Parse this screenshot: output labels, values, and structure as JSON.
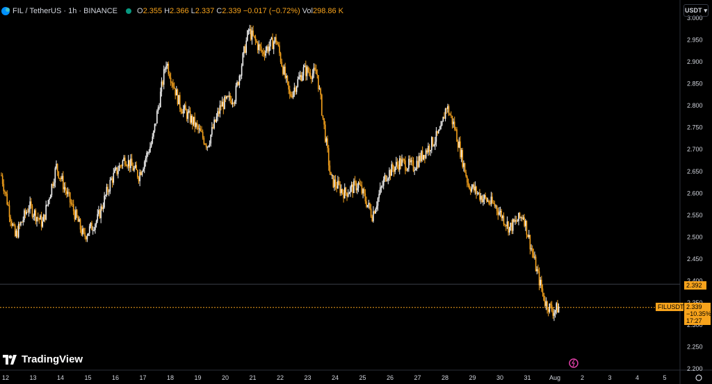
{
  "header": {
    "symbol_title": "FIL / TetherUS · 1h · BINANCE",
    "o_label": "O",
    "o_value": "2.355",
    "h_label": "H",
    "h_value": "2.366",
    "l_label": "L",
    "l_value": "2.337",
    "c_label": "C",
    "c_value": "2.339",
    "change": "−0.017 (−0.72%)",
    "vol_label": "Vol",
    "vol_value": "298.86 K"
  },
  "currency_button": "USDT",
  "brand": "TradingView",
  "price_tags": {
    "alert_price": "2.392",
    "symbol_label": "FILUSDT",
    "last_price": "2.339",
    "change_pct": "−10.35%",
    "countdown": "17:27"
  },
  "colors": {
    "up": "#f5f5f5",
    "down": "#f7a31c",
    "accent": "#f7a31c",
    "status_dot": "#089981"
  },
  "chart_data": {
    "type": "candlestick",
    "y_ticks": [
      2.2,
      2.25,
      2.3,
      2.35,
      2.4,
      2.45,
      2.5,
      2.55,
      2.6,
      2.65,
      2.7,
      2.75,
      2.8,
      2.85,
      2.9,
      2.95,
      3.0
    ],
    "y_tick_labels": [
      "2.200",
      "2.250",
      "2.300",
      "2.350",
      "2.400",
      "2.450",
      "2.500",
      "2.550",
      "2.600",
      "2.650",
      "2.700",
      "2.750",
      "2.800",
      "2.850",
      "2.900",
      "2.950",
      "3.000"
    ],
    "ylim": [
      2.196,
      3.04
    ],
    "x_tick_labels": [
      "12",
      "13",
      "14",
      "15",
      "16",
      "17",
      "18",
      "19",
      "20",
      "21",
      "22",
      "23",
      "24",
      "25",
      "26",
      "27",
      "28",
      "29",
      "30",
      "31",
      "Aug",
      "2",
      "3",
      "4",
      "5"
    ],
    "trend": [
      [
        0,
        2.64
      ],
      [
        0.5,
        2.5
      ],
      [
        1,
        2.57
      ],
      [
        1.5,
        2.53
      ],
      [
        2,
        2.66
      ],
      [
        2.5,
        2.58
      ],
      [
        3,
        2.5
      ],
      [
        3.5,
        2.54
      ],
      [
        4,
        2.63
      ],
      [
        4.5,
        2.68
      ],
      [
        5,
        2.64
      ],
      [
        5.5,
        2.72
      ],
      [
        6,
        2.9
      ],
      [
        6.5,
        2.8
      ],
      [
        7,
        2.76
      ],
      [
        7.5,
        2.71
      ],
      [
        8,
        2.8
      ],
      [
        8.5,
        2.82
      ],
      [
        9,
        2.97
      ],
      [
        9.5,
        2.92
      ],
      [
        10,
        2.95
      ],
      [
        10.5,
        2.82
      ],
      [
        11,
        2.88
      ],
      [
        11.5,
        2.87
      ],
      [
        12,
        2.63
      ],
      [
        12.5,
        2.6
      ],
      [
        13,
        2.62
      ],
      [
        13.5,
        2.55
      ],
      [
        14,
        2.64
      ],
      [
        14.5,
        2.67
      ],
      [
        15,
        2.66
      ],
      [
        15.5,
        2.7
      ],
      [
        16,
        2.74
      ],
      [
        16.2,
        2.8
      ],
      [
        16.5,
        2.75
      ],
      [
        17,
        2.62
      ],
      [
        17.5,
        2.59
      ],
      [
        18,
        2.57
      ],
      [
        18.5,
        2.52
      ],
      [
        19,
        2.55
      ],
      [
        19.5,
        2.42
      ],
      [
        19.8,
        2.35
      ],
      [
        20.1,
        2.33
      ],
      [
        20.3,
        2.34
      ]
    ],
    "price_line": 2.392,
    "last_price": 2.339
  }
}
